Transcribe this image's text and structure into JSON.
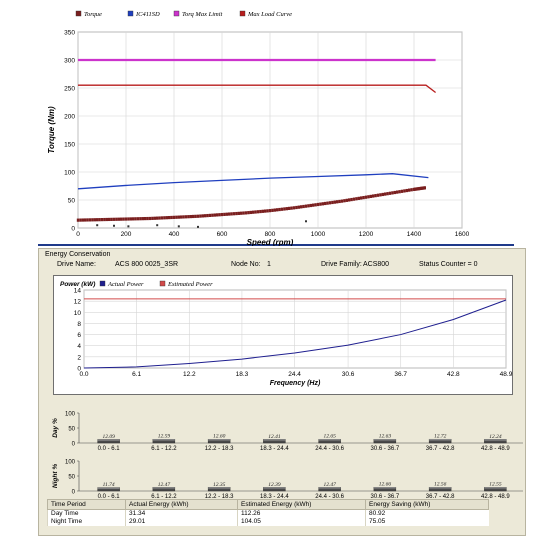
{
  "torque_chart": {
    "legend": [
      {
        "label": "Torque",
        "color": "#7a1f1f"
      },
      {
        "label": "IC411SD",
        "color": "#1f3fbf"
      },
      {
        "label": "Torq Max Limit",
        "color": "#cc33cc"
      },
      {
        "label": "Max Load Curve",
        "color": "#b81d1d"
      }
    ],
    "xlabel": "Speed (rpm)",
    "ylabel": "Torque (Nm)"
  },
  "energy_panel": {
    "title": "Energy Conservation",
    "drive_name_label": "Drive Name:",
    "drive_name": "ACS 800 0025_3SR",
    "node_label": "Node No:",
    "node_no": "1",
    "family_label": "Drive Family:",
    "family": "ACS800",
    "status": "Status Counter = 0"
  },
  "power_chart": {
    "legend": [
      {
        "label": "Actual Power",
        "color": "#1f1f8f"
      },
      {
        "label": "Estimated Power",
        "color": "#d24a4a"
      }
    ],
    "ylabel": "Power (kW)",
    "xlabel": "Frequency (Hz)"
  },
  "day_bars": {
    "ylabel": "Day %",
    "yticks": [
      "100",
      "50",
      "0"
    ],
    "ranges": [
      "0.0 - 6.1",
      "6.1 - 12.2",
      "12.2 - 18.3",
      "18.3 - 24.4",
      "24.4 - 30.6",
      "30.6 - 36.7",
      "36.7 - 42.8",
      "42.8 - 48.9"
    ],
    "values": [
      "12.09",
      "12.59",
      "12.60",
      "12.41",
      "12.65",
      "12.63",
      "12.72",
      "12.24"
    ]
  },
  "night_bars": {
    "ylabel": "Night %",
    "yticks": [
      "100",
      "50",
      "0"
    ],
    "ranges": [
      "0.0 - 6.1",
      "6.1 - 12.2",
      "12.2 - 18.3",
      "18.3 - 24.4",
      "24.4 - 30.6",
      "30.6 - 36.7",
      "36.7 - 42.8",
      "42.8 - 48.9"
    ],
    "values": [
      "11.74",
      "12.47",
      "12.35",
      "12.39",
      "12.47",
      "12.66",
      "12.56",
      "12.55"
    ]
  },
  "table": {
    "headers": [
      "Time Period",
      "Actual Energy (kWh)",
      "Estimated Energy (kWh)",
      "Energy Saving (kWh)"
    ],
    "rows": [
      [
        "Day Time",
        "31.34",
        "112.26",
        "80.92"
      ],
      [
        "Night Time",
        "29.01",
        "104.05",
        "75.05"
      ]
    ]
  },
  "chart_data": [
    {
      "type": "line",
      "x_axis": {
        "label": "Speed (rpm)",
        "range": [
          0,
          1600
        ],
        "ticks": [
          0,
          200,
          400,
          600,
          800,
          1000,
          1200,
          1400,
          1600
        ]
      },
      "y_axis": {
        "label": "Torque (Nm)",
        "range": [
          0,
          350
        ],
        "ticks": [
          0,
          50,
          100,
          150,
          200,
          250,
          300,
          350
        ]
      },
      "grid": true,
      "legend_position": "top",
      "series": [
        {
          "name": "Torque",
          "kind": "scatter",
          "color": "#7a1f1f",
          "x": [
            0,
            100,
            200,
            300,
            400,
            500,
            600,
            700,
            800,
            900,
            1000,
            1100,
            1200,
            1300,
            1400,
            1450
          ],
          "y": [
            14,
            15,
            16,
            17,
            19,
            21,
            24,
            27,
            31,
            36,
            42,
            48,
            55,
            62,
            69,
            72
          ]
        },
        {
          "name": "IC411SD",
          "kind": "line",
          "color": "#1f3fbf",
          "x": [
            0,
            200,
            400,
            600,
            800,
            1000,
            1200,
            1310,
            1460
          ],
          "y": [
            70,
            76,
            81,
            85,
            89,
            92,
            95,
            97,
            90
          ]
        },
        {
          "name": "Torq Max Limit",
          "kind": "line",
          "color": "#cc33cc",
          "x": [
            0,
            1490
          ],
          "y": [
            300,
            300
          ]
        },
        {
          "name": "Max Load Curve",
          "kind": "line",
          "color": "#b81d1d",
          "x": [
            0,
            1450,
            1490
          ],
          "y": [
            255,
            255,
            242
          ]
        }
      ]
    },
    {
      "type": "line",
      "x_axis": {
        "label": "Frequency (Hz)",
        "range": [
          0,
          48.9
        ],
        "ticks": [
          0.0,
          6.1,
          12.2,
          18.3,
          24.4,
          30.6,
          36.7,
          42.8,
          48.9
        ]
      },
      "y_axis": {
        "label": "Power (kW)",
        "range": [
          0,
          14
        ],
        "ticks": [
          0,
          2,
          4,
          6,
          8,
          10,
          12,
          14
        ]
      },
      "grid": true,
      "legend_position": "top",
      "series": [
        {
          "name": "Actual Power",
          "color": "#1f1f8f",
          "x": [
            0,
            6.1,
            12.2,
            18.3,
            24.4,
            30.6,
            36.7,
            42.8,
            48.9
          ],
          "y": [
            0,
            0.2,
            0.8,
            1.6,
            2.7,
            4.1,
            6.0,
            8.7,
            12.2
          ]
        },
        {
          "name": "Estimated Power",
          "color": "#d24a4a",
          "x": [
            0,
            48.9
          ],
          "y": [
            12.4,
            12.4
          ]
        }
      ]
    },
    {
      "type": "bar",
      "title": "Day %",
      "categories": [
        "0.0 - 6.1",
        "6.1 - 12.2",
        "12.2 - 18.3",
        "18.3 - 24.4",
        "24.4 - 30.6",
        "30.6 - 36.7",
        "36.7 - 42.8",
        "42.8 - 48.9"
      ],
      "values": [
        12.09,
        12.59,
        12.6,
        12.41,
        12.65,
        12.63,
        12.72,
        12.24
      ],
      "ylim": [
        0,
        100
      ]
    },
    {
      "type": "bar",
      "title": "Night %",
      "categories": [
        "0.0 - 6.1",
        "6.1 - 12.2",
        "12.2 - 18.3",
        "18.3 - 24.4",
        "24.4 - 30.6",
        "30.6 - 36.7",
        "36.7 - 42.8",
        "42.8 - 48.9"
      ],
      "values": [
        11.74,
        12.47,
        12.35,
        12.39,
        12.47,
        12.66,
        12.56,
        12.55
      ],
      "ylim": [
        0,
        100
      ]
    }
  ]
}
